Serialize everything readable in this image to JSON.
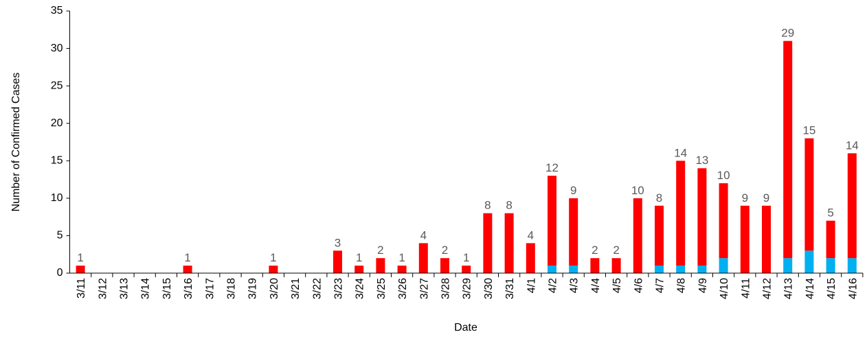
{
  "chart_data": {
    "type": "stacked-bar",
    "x_label": "Date",
    "y_label": "Number of Confirmed Cases",
    "categories": [
      "3/11",
      "3/12",
      "3/13",
      "3/14",
      "3/15",
      "3/16",
      "3/17",
      "3/18",
      "3/19",
      "3/20",
      "3/21",
      "3/22",
      "3/23",
      "3/24",
      "3/25",
      "3/26",
      "3/27",
      "3/28",
      "3/29",
      "3/30",
      "3/31",
      "4/1",
      "4/2",
      "4/3",
      "4/4",
      "4/5",
      "4/6",
      "4/7",
      "4/8",
      "4/9",
      "4/10",
      "4/11",
      "4/12",
      "4/13",
      "4/14",
      "4/15",
      "4/16"
    ],
    "series": [
      {
        "color": "#00b0f0",
        "values": [
          0,
          0,
          0,
          0,
          0,
          0,
          0,
          0,
          0,
          0,
          0,
          0,
          0,
          0,
          0,
          0,
          0,
          0,
          0,
          0,
          0,
          0,
          1,
          1,
          0,
          0,
          0,
          1,
          1,
          1,
          2,
          0,
          0,
          2,
          3,
          2,
          2
        ]
      },
      {
        "color": "#ff0000",
        "values": [
          1,
          0,
          0,
          0,
          0,
          1,
          0,
          0,
          0,
          1,
          0,
          0,
          3,
          1,
          2,
          1,
          4,
          2,
          1,
          8,
          8,
          4,
          12,
          9,
          2,
          2,
          10,
          8,
          14,
          13,
          10,
          9,
          9,
          29,
          15,
          5,
          14
        ]
      }
    ],
    "labeled_series": 1,
    "ylim": [
      0,
      35
    ],
    "yticks": [
      0,
      5,
      10,
      15,
      20,
      25,
      30,
      35
    ],
    "grid": false
  }
}
